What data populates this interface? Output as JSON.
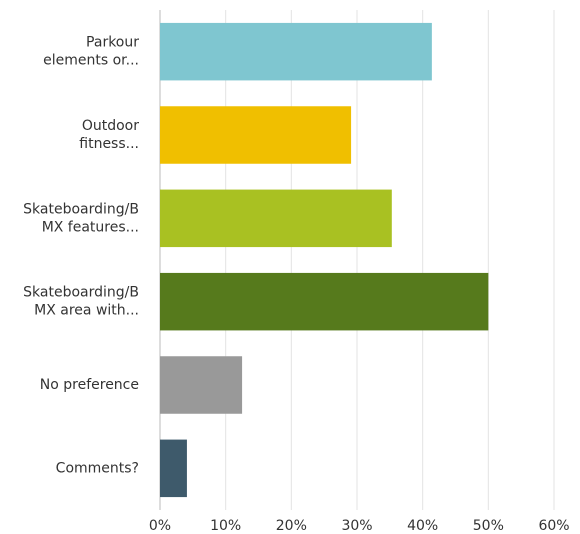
{
  "chart_data": {
    "type": "bar",
    "orientation": "horizontal",
    "categories": [
      "Parkour\nelements or...",
      "Outdoor\nfitness...",
      "Skateboarding/B\nMX features...",
      "Skateboarding/B\nMX area with...",
      "No preference",
      "Comments?"
    ],
    "values": [
      41.4,
      29.1,
      35.3,
      50.0,
      12.5,
      4.1
    ],
    "colors": [
      "#7fc6d0",
      "#f0bf00",
      "#a9c122",
      "#567a1c",
      "#999999",
      "#3e5a6b"
    ],
    "xlim": [
      0,
      60
    ],
    "xticks": [
      {
        "value": 0,
        "label": "0%"
      },
      {
        "value": 10,
        "label": "10%"
      },
      {
        "value": 20,
        "label": "20%"
      },
      {
        "value": 30,
        "label": "30%"
      },
      {
        "value": 40,
        "label": "40%"
      },
      {
        "value": 50,
        "label": "50%"
      },
      {
        "value": 60,
        "label": "60%"
      }
    ],
    "grid": true
  }
}
